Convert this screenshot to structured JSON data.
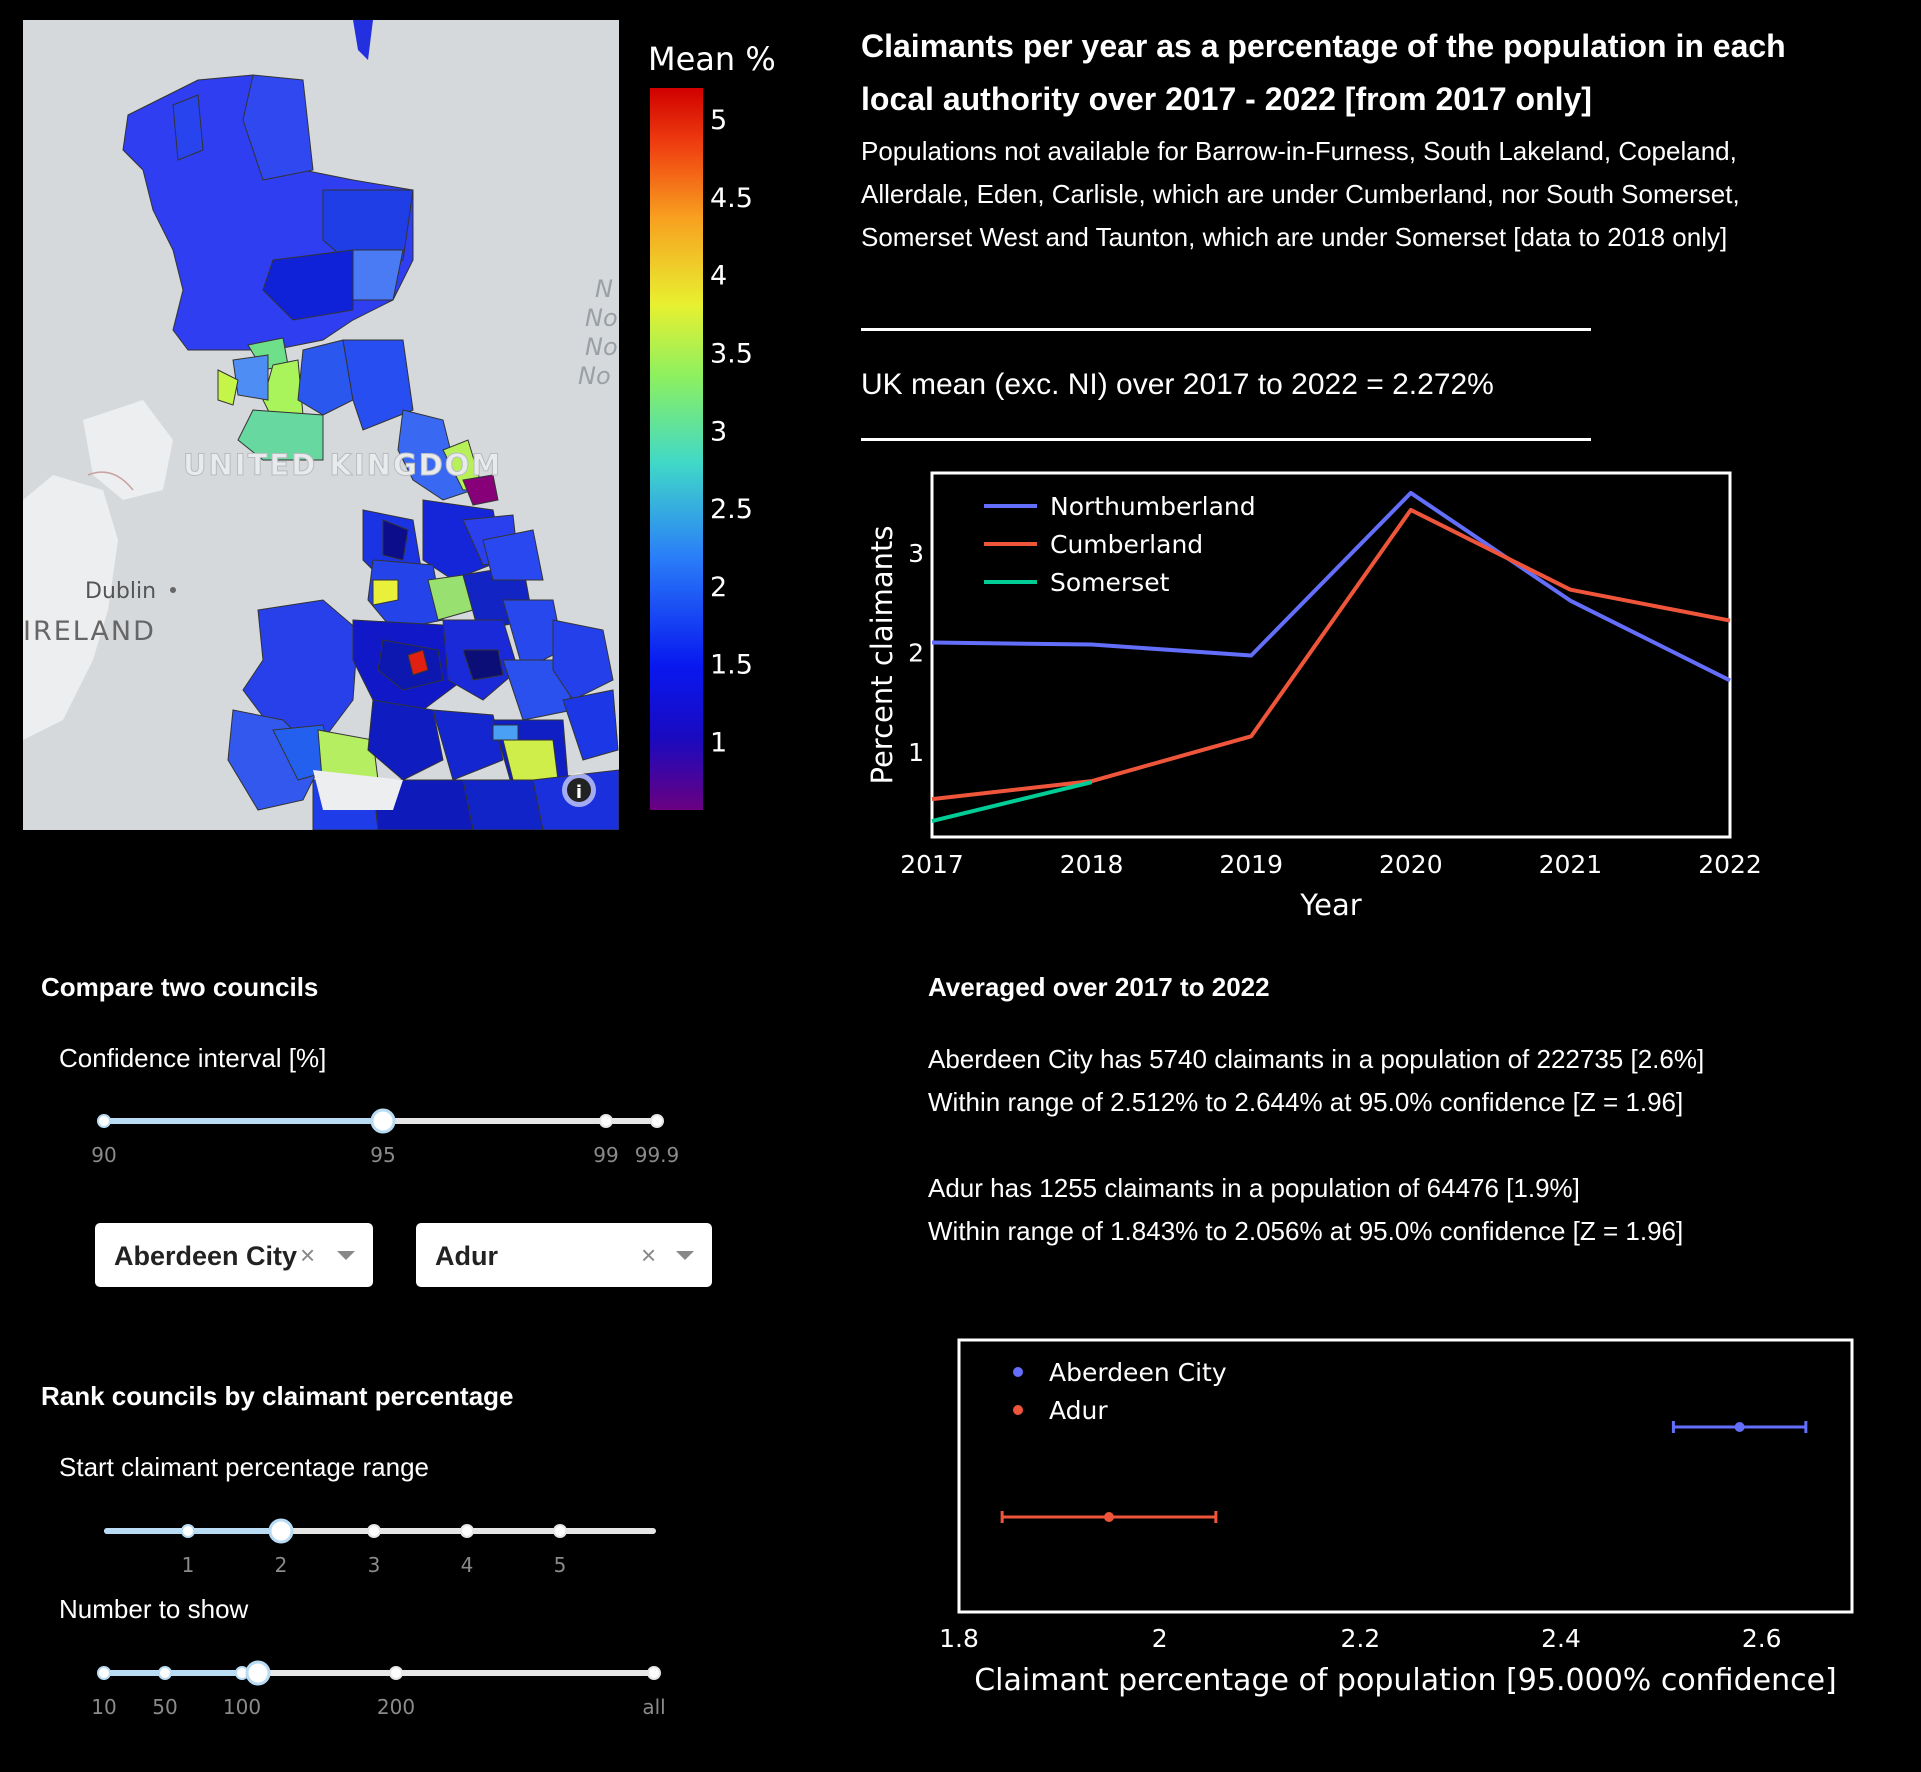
{
  "map": {
    "labels": {
      "country": "UNITED KINGDOM",
      "city": "Dublin",
      "ireland": "IRELAND",
      "sea": [
        "N",
        "No",
        "No",
        "No"
      ]
    },
    "info_icon": "info-icon",
    "colorbar": {
      "title": "Mean %",
      "ticks": [
        "5",
        "4.5",
        "4",
        "3.5",
        "3",
        "2.5",
        "2",
        "1.5",
        "1"
      ],
      "colorscale": "rainbow"
    }
  },
  "header": {
    "title": "Claimants per year as a percentage of the population in each local authority over 2017 - 2022 [from 2017 only]",
    "subtitle": "Populations not available for Barrow-in-Furness, South Lakeland, Copeland, Allerdale, Eden, Carlisle, which are under Cumberland, nor South Somerset, Somerset West and Taunton, which are under Somerset [data to 2018 only]",
    "uk_mean": "UK mean (exc. NI) over 2017 to 2022 = 2.272%"
  },
  "chart_data": [
    {
      "type": "line",
      "xlabel": "Year",
      "ylabel": "Percent claimants",
      "x_ticks": [
        "2017",
        "2018",
        "2019",
        "2020",
        "2021",
        "2022"
      ],
      "y_ticks": [
        "1",
        "2",
        "3"
      ],
      "xlim": [
        2017,
        2022
      ],
      "ylim": [
        0.15,
        3.8
      ],
      "legend": "top-left",
      "series": [
        {
          "name": "Northumberland",
          "color": "#636efa",
          "x": [
            2017,
            2018,
            2019,
            2020,
            2021,
            2022
          ],
          "y": [
            2.1,
            2.08,
            1.97,
            3.6,
            2.52,
            1.72
          ]
        },
        {
          "name": "Cumberland",
          "color": "#ef553b",
          "x": [
            2017,
            2018,
            2019,
            2020,
            2021,
            2022
          ],
          "y": [
            0.53,
            0.71,
            1.16,
            3.43,
            2.63,
            2.32
          ]
        },
        {
          "name": "Somerset",
          "color": "#00cc96",
          "x": [
            2017,
            2018
          ],
          "y": [
            0.31,
            0.7
          ]
        }
      ]
    },
    {
      "type": "scatter",
      "xlabel": "Claimant percentage of population [95.000% confidence]",
      "x_ticks": [
        "1.8",
        "2",
        "2.2",
        "2.4",
        "2.6"
      ],
      "xlim": [
        1.8,
        2.69
      ],
      "legend": "top-left",
      "series": [
        {
          "name": "Aberdeen City",
          "color": "#636efa",
          "x": 2.578,
          "low": 2.512,
          "high": 2.644
        },
        {
          "name": "Adur",
          "color": "#ef553b",
          "x": 1.9495,
          "low": 1.843,
          "high": 2.056
        }
      ]
    }
  ],
  "compare": {
    "title": "Compare two councils",
    "ci_label": "Confidence interval [%]",
    "ci_slider": {
      "marks": [
        "90",
        "95",
        "99",
        "99.9"
      ],
      "value": "95"
    },
    "council_a": "Aberdeen City",
    "council_b": "Adur",
    "clear_glyph": "×"
  },
  "averaged": {
    "title": "Averaged over 2017 to 2022",
    "a_line1": "Aberdeen City has 5740 claimants in a population of 222735 [2.6%]",
    "a_line2": "Within range of 2.512% to 2.644% at 95.0% confidence [Z = 1.96]",
    "b_line1": "Adur has 1255 claimants in a population of 64476 [1.9%]",
    "b_line2": "Within range of 1.843% to 2.056% at 95.0% confidence [Z = 1.96]"
  },
  "rank": {
    "title": "Rank councils by claimant percentage",
    "start_label": "Start claimant percentage range",
    "start_slider": {
      "marks": [
        "1",
        "2",
        "3",
        "4",
        "5"
      ],
      "value": "2"
    },
    "number_label": "Number to show",
    "number_slider": {
      "marks": [
        "10",
        "50",
        "100",
        "200",
        "all"
      ],
      "value": "120"
    }
  }
}
